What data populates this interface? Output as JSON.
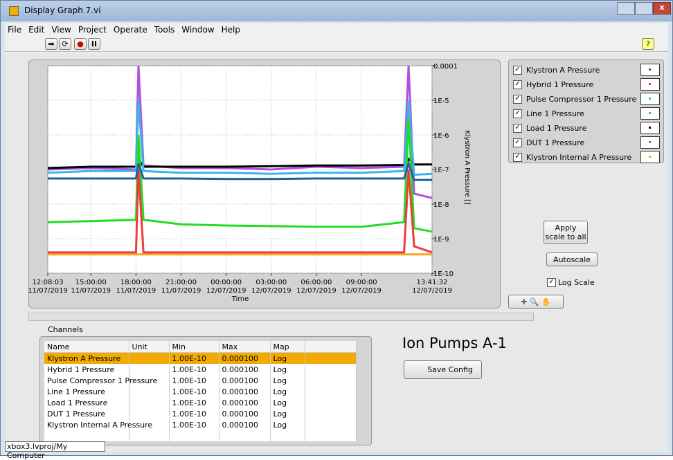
{
  "window": {
    "title": "Display Graph 7.vi",
    "menu": [
      "File",
      "Edit",
      "View",
      "Project",
      "Operate",
      "Tools",
      "Window",
      "Help"
    ]
  },
  "chart_data": {
    "type": "line",
    "log_y": true,
    "grid": true,
    "ylabel": "Klystron A Pressure []",
    "xlabel": "Time",
    "xlim": [
      "2019-07-11T12:08:03",
      "2019-07-12T13:41:32"
    ],
    "xticks": [
      {
        "value": "2019-07-11T12:08:03",
        "label": "12:08:03 11/07/2019"
      },
      {
        "value": "2019-07-11T15:00:00",
        "label": "15:00:00 11/07/2019"
      },
      {
        "value": "2019-07-11T18:00:00",
        "label": "18:00:00 11/07/2019"
      },
      {
        "value": "2019-07-11T21:00:00",
        "label": "21:00:00 11/07/2019"
      },
      {
        "value": "2019-07-12T00:00:00",
        "label": "00:00:00 12/07/2019"
      },
      {
        "value": "2019-07-12T03:00:00",
        "label": "03:00:00 12/07/2019"
      },
      {
        "value": "2019-07-12T06:00:00",
        "label": "06:00:00 12/07/2019"
      },
      {
        "value": "2019-07-12T09:00:00",
        "label": "09:00:00 12/07/2019"
      },
      {
        "value": "2019-07-12T13:41:32",
        "label": "13:41:32 12/07/2019"
      }
    ],
    "ylim": [
      1e-10,
      0.0001
    ],
    "yticks": [
      0.0001,
      {
        "value": 1e-05,
        "label": "1E-5"
      },
      {
        "value": 1e-06,
        "label": "1E-6"
      },
      {
        "value": 1e-07,
        "label": "1E-7"
      },
      {
        "value": 1e-08,
        "label": "1E-8"
      },
      {
        "value": 1e-09,
        "label": "1E-9"
      },
      {
        "value": 1e-10,
        "label": "1E-10"
      }
    ],
    "x": [
      "2019-07-11T12:08:03",
      "2019-07-11T15:00:00",
      "2019-07-11T18:00:00",
      "2019-07-11T18:10:00",
      "2019-07-11T18:30:00",
      "2019-07-11T21:00:00",
      "2019-07-12T00:00:00",
      "2019-07-12T03:00:00",
      "2019-07-12T06:00:00",
      "2019-07-12T09:00:00",
      "2019-07-12T11:50:00",
      "2019-07-12T12:08:00",
      "2019-07-12T12:30:00",
      "2019-07-12T13:41:32"
    ],
    "series": [
      {
        "name": "Klystron A Pressure",
        "color": "#1f5f9e",
        "values": [
          5.5e-08,
          5.5e-08,
          5.5e-08,
          1.5e-07,
          5.5e-08,
          5.5e-08,
          5.3e-08,
          5.3e-08,
          5.5e-08,
          5.5e-08,
          5.5e-08,
          1.5e-07,
          5e-08,
          5e-08
        ]
      },
      {
        "name": "Hybrid 1 Pressure",
        "color": "#ee3b3b",
        "values": [
          4e-10,
          4e-10,
          4e-10,
          1e-07,
          4e-10,
          4e-10,
          4e-10,
          4e-10,
          4e-10,
          4e-10,
          4e-10,
          1e-07,
          6e-10,
          4e-10
        ]
      },
      {
        "name": "Pulse Compressor 1 Pressure",
        "color": "#22dd22",
        "values": [
          3e-09,
          3.2e-09,
          3.5e-09,
          1e-06,
          3.5e-09,
          2.6e-09,
          2.4e-09,
          2.3e-09,
          2.2e-09,
          2.2e-09,
          3e-09,
          3e-06,
          2e-09,
          1.6e-09
        ]
      },
      {
        "name": "Line 1 Pressure",
        "color": "#3cb4e6",
        "values": [
          8e-08,
          9e-08,
          9e-08,
          1e-05,
          9e-08,
          8e-08,
          8e-08,
          7.5e-08,
          8e-08,
          8e-08,
          9e-08,
          1e-05,
          7e-08,
          7.5e-08
        ]
      },
      {
        "name": "Load 1 Pressure",
        "color": "#000000",
        "values": [
          1.1e-07,
          1.2e-07,
          1.2e-07,
          2e-07,
          1.2e-07,
          1.2e-07,
          1.2e-07,
          1.25e-07,
          1.3e-07,
          1.3e-07,
          1.35e-07,
          2e-07,
          1.4e-07,
          1.4e-07
        ]
      },
      {
        "name": "DUT 1 Pressure",
        "color": "#b04fe0",
        "values": [
          1e-07,
          1.1e-07,
          1e-07,
          0.0001,
          1.3e-07,
          1.1e-07,
          1.1e-07,
          1e-07,
          1.2e-07,
          1.1e-07,
          1.2e-07,
          0.0001,
          2e-08,
          1.5e-08
        ]
      },
      {
        "name": "Klystron Internal A Pressure",
        "color": "#f5a623",
        "values": [
          3.5e-10,
          3.5e-10,
          3.5e-10,
          3.5e-10,
          3.5e-10,
          3.5e-10,
          3.5e-10,
          3.5e-10,
          3.5e-10,
          3.5e-10,
          3.5e-10,
          3.5e-10,
          3.5e-10,
          3.5e-10
        ]
      }
    ]
  },
  "controls": {
    "apply_scale": "Apply scale to all",
    "autoscale": "Autoscale",
    "log_scale": "Log Scale"
  },
  "channels": {
    "title": "Channels",
    "columns": [
      "Name",
      "Unit",
      "Min",
      "Max",
      "Map"
    ],
    "rows": [
      [
        "Klystron A Pressure",
        "",
        "1.00E-10",
        "0.000100",
        "Log"
      ],
      [
        "Hybrid 1 Pressure",
        "",
        "1.00E-10",
        "0.000100",
        "Log"
      ],
      [
        "Pulse Compressor 1 Pressure",
        "",
        "1.00E-10",
        "0.000100",
        "Log"
      ],
      [
        "Line 1 Pressure",
        "",
        "1.00E-10",
        "0.000100",
        "Log"
      ],
      [
        "Load 1 Pressure",
        "",
        "1.00E-10",
        "0.000100",
        "Log"
      ],
      [
        "DUT 1 Pressure",
        "",
        "1.00E-10",
        "0.000100",
        "Log"
      ],
      [
        "Klystron Internal A Pressure",
        "",
        "1.00E-10",
        "0.000100",
        "Log"
      ]
    ]
  },
  "heading": "Ion Pumps A-1",
  "save_config": "Save Config",
  "status": "xbox3.lvproj/My Computer"
}
